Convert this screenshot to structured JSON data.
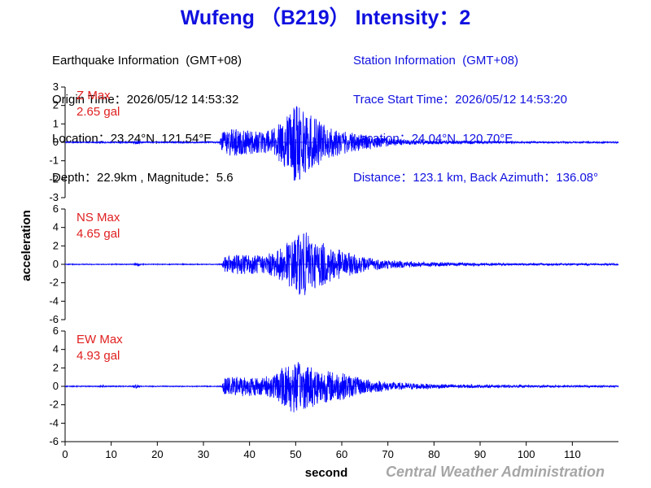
{
  "title": "Wufeng （B219） Intensity：2",
  "earthquake_info": {
    "header": "Earthquake Information  (GMT+08)",
    "origin_time": "Origin Time：2026/05/12 14:53:32",
    "location": "Location：23.24°N, 121.54°E",
    "depth_magnitude": "Depth：22.9km , Magnitude：5.6"
  },
  "station_info": {
    "header": "Station Information  (GMT+08)",
    "trace_start": "Trace Start Time：2026/05/12 14:53:20",
    "location": "Location：24.04°N, 120.70°E",
    "distance": "Distance：123.1 km, Back Azimuth：136.08°"
  },
  "credit": "Central Weather Administration",
  "colors": {
    "title": "#1010e0",
    "trace": "#0000ff",
    "max_label": "#e02020",
    "credit": "#a6a6a6"
  },
  "chart_data": {
    "type": "line",
    "xlabel": "second",
    "ylabel": "acceleration",
    "xlim": [
      0,
      120
    ],
    "xticks": [
      0,
      10,
      20,
      30,
      40,
      50,
      60,
      70,
      80,
      90,
      100,
      110
    ],
    "panels": [
      {
        "component": "Z",
        "max_label": "Z Max",
        "max_value": "2.65 gal",
        "ylim": [
          -3,
          3
        ],
        "yticks": [
          3,
          2,
          1,
          0,
          -1,
          -2,
          -3
        ],
        "envelope": [
          [
            0,
            0.03
          ],
          [
            7,
            0.03
          ],
          [
            8,
            0.07
          ],
          [
            9,
            0.03
          ],
          [
            14.5,
            0.04
          ],
          [
            15.5,
            0.12
          ],
          [
            16.5,
            0.04
          ],
          [
            33.5,
            0.04
          ],
          [
            34,
            0.55
          ],
          [
            36,
            0.75
          ],
          [
            40,
            0.65
          ],
          [
            43,
            0.55
          ],
          [
            45,
            0.75
          ],
          [
            47,
            1.15
          ],
          [
            49,
            1.8
          ],
          [
            50,
            2.25
          ],
          [
            52,
            1.7
          ],
          [
            54,
            1.5
          ],
          [
            56,
            1.0
          ],
          [
            58,
            0.8
          ],
          [
            62,
            0.55
          ],
          [
            66,
            0.35
          ],
          [
            70,
            0.22
          ],
          [
            75,
            0.14
          ],
          [
            80,
            0.1
          ],
          [
            90,
            0.07
          ],
          [
            100,
            0.05
          ],
          [
            110,
            0.04
          ],
          [
            120,
            0.04
          ]
        ]
      },
      {
        "component": "NS",
        "max_label": "NS Max",
        "max_value": "4.65 gal",
        "ylim": [
          -6,
          6
        ],
        "yticks": [
          6,
          4,
          2,
          0,
          -2,
          -4,
          -6
        ],
        "envelope": [
          [
            0,
            0.05
          ],
          [
            14.5,
            0.05
          ],
          [
            15.5,
            0.2
          ],
          [
            16.5,
            0.05
          ],
          [
            34,
            0.05
          ],
          [
            34.5,
            0.8
          ],
          [
            38,
            1.1
          ],
          [
            43,
            1.0
          ],
          [
            46,
            1.5
          ],
          [
            48,
            2.3
          ],
          [
            50,
            3.1
          ],
          [
            52,
            3.6
          ],
          [
            54,
            2.7
          ],
          [
            56,
            2.3
          ],
          [
            58,
            1.9
          ],
          [
            60,
            1.5
          ],
          [
            64,
            0.9
          ],
          [
            68,
            0.6
          ],
          [
            72,
            0.4
          ],
          [
            78,
            0.25
          ],
          [
            85,
            0.18
          ],
          [
            95,
            0.12
          ],
          [
            110,
            0.1
          ],
          [
            120,
            0.1
          ]
        ]
      },
      {
        "component": "EW",
        "max_label": "EW Max",
        "max_value": "4.93 gal",
        "ylim": [
          -6,
          6
        ],
        "yticks": [
          6,
          4,
          2,
          0,
          -2,
          -4,
          -6
        ],
        "envelope": [
          [
            0,
            0.05
          ],
          [
            7,
            0.05
          ],
          [
            8,
            0.15
          ],
          [
            9,
            0.05
          ],
          [
            14.5,
            0.05
          ],
          [
            15.5,
            0.25
          ],
          [
            16.5,
            0.05
          ],
          [
            34,
            0.05
          ],
          [
            34.5,
            0.9
          ],
          [
            38,
            1.1
          ],
          [
            43,
            1.0
          ],
          [
            46,
            1.5
          ],
          [
            48,
            2.5
          ],
          [
            49,
            3.4
          ],
          [
            50,
            2.7
          ],
          [
            52,
            2.5
          ],
          [
            54,
            2.2
          ],
          [
            56,
            1.8
          ],
          [
            60,
            1.5
          ],
          [
            64,
            0.9
          ],
          [
            68,
            0.6
          ],
          [
            72,
            0.4
          ],
          [
            80,
            0.25
          ],
          [
            90,
            0.15
          ],
          [
            110,
            0.1
          ],
          [
            120,
            0.1
          ]
        ]
      }
    ]
  }
}
